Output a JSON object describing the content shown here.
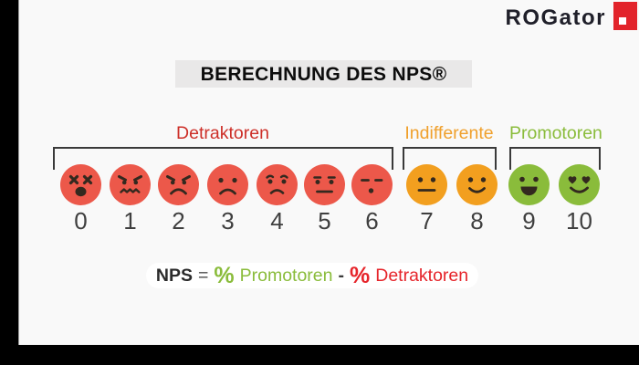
{
  "page": {
    "background": "#f9f9f9",
    "border_color": "#000000"
  },
  "logo": {
    "text": "ROGator",
    "color": "#20202a",
    "square_color": "#e2242b",
    "square_inner_color": "#ffffff"
  },
  "title": {
    "text": "BERECHNUNG DES NPS®",
    "background": "#e9e8e8",
    "color": "#0d0d0d"
  },
  "groups": [
    {
      "label": "Detraktoren",
      "color": "#cd2f28",
      "values": "0–6"
    },
    {
      "label": "Indifferente",
      "color": "#f0a02c",
      "values": "7–8"
    },
    {
      "label": "Promotoren",
      "color": "#8abc3b",
      "values": "9–10"
    }
  ],
  "scale": {
    "feature_color": "#33291f",
    "number_color": "#3f3f3f",
    "items": [
      {
        "value": "0",
        "group": "Detraktoren",
        "expression": "dizzy",
        "color": "#ec584a"
      },
      {
        "value": "1",
        "group": "Detraktoren",
        "expression": "angry-grimace",
        "color": "#ec584a"
      },
      {
        "value": "2",
        "group": "Detraktoren",
        "expression": "angry-frown",
        "color": "#ec584a"
      },
      {
        "value": "3",
        "group": "Detraktoren",
        "expression": "sad",
        "color": "#ec584a"
      },
      {
        "value": "4",
        "group": "Detraktoren",
        "expression": "worried",
        "color": "#ec584a"
      },
      {
        "value": "5",
        "group": "Detraktoren",
        "expression": "unamused",
        "color": "#ec584a"
      },
      {
        "value": "6",
        "group": "Detraktoren",
        "expression": "sigh",
        "color": "#ec584a"
      },
      {
        "value": "7",
        "group": "Indifferente",
        "expression": "neutral",
        "color": "#f29f1f"
      },
      {
        "value": "8",
        "group": "Indifferente",
        "expression": "slight-smile",
        "color": "#f29f1f"
      },
      {
        "value": "9",
        "group": "Promotoren",
        "expression": "laughing",
        "color": "#8abc3b"
      },
      {
        "value": "10",
        "group": "Promotoren",
        "expression": "heart-eyes",
        "color": "#8abc3b"
      }
    ]
  },
  "formula": {
    "highlight_color": "#ffffff",
    "parts": [
      {
        "name": "nps",
        "text": "NPS",
        "color": "#2b2b2b",
        "bold": true
      },
      {
        "name": "equals",
        "text": "=",
        "color": "#4d4d4d"
      },
      {
        "name": "promoters-percent",
        "text": "%",
        "color": "#8abc3b",
        "large": true
      },
      {
        "name": "promoters",
        "text": "Promotoren",
        "color": "#8abc3b"
      },
      {
        "name": "minus",
        "text": "-",
        "color": "#3a3a3a",
        "bold": true
      },
      {
        "name": "detractors-percent",
        "text": "%",
        "color": "#e6252b",
        "large": true
      },
      {
        "name": "detractors",
        "text": "Detraktoren",
        "color": "#e6252b"
      }
    ]
  }
}
